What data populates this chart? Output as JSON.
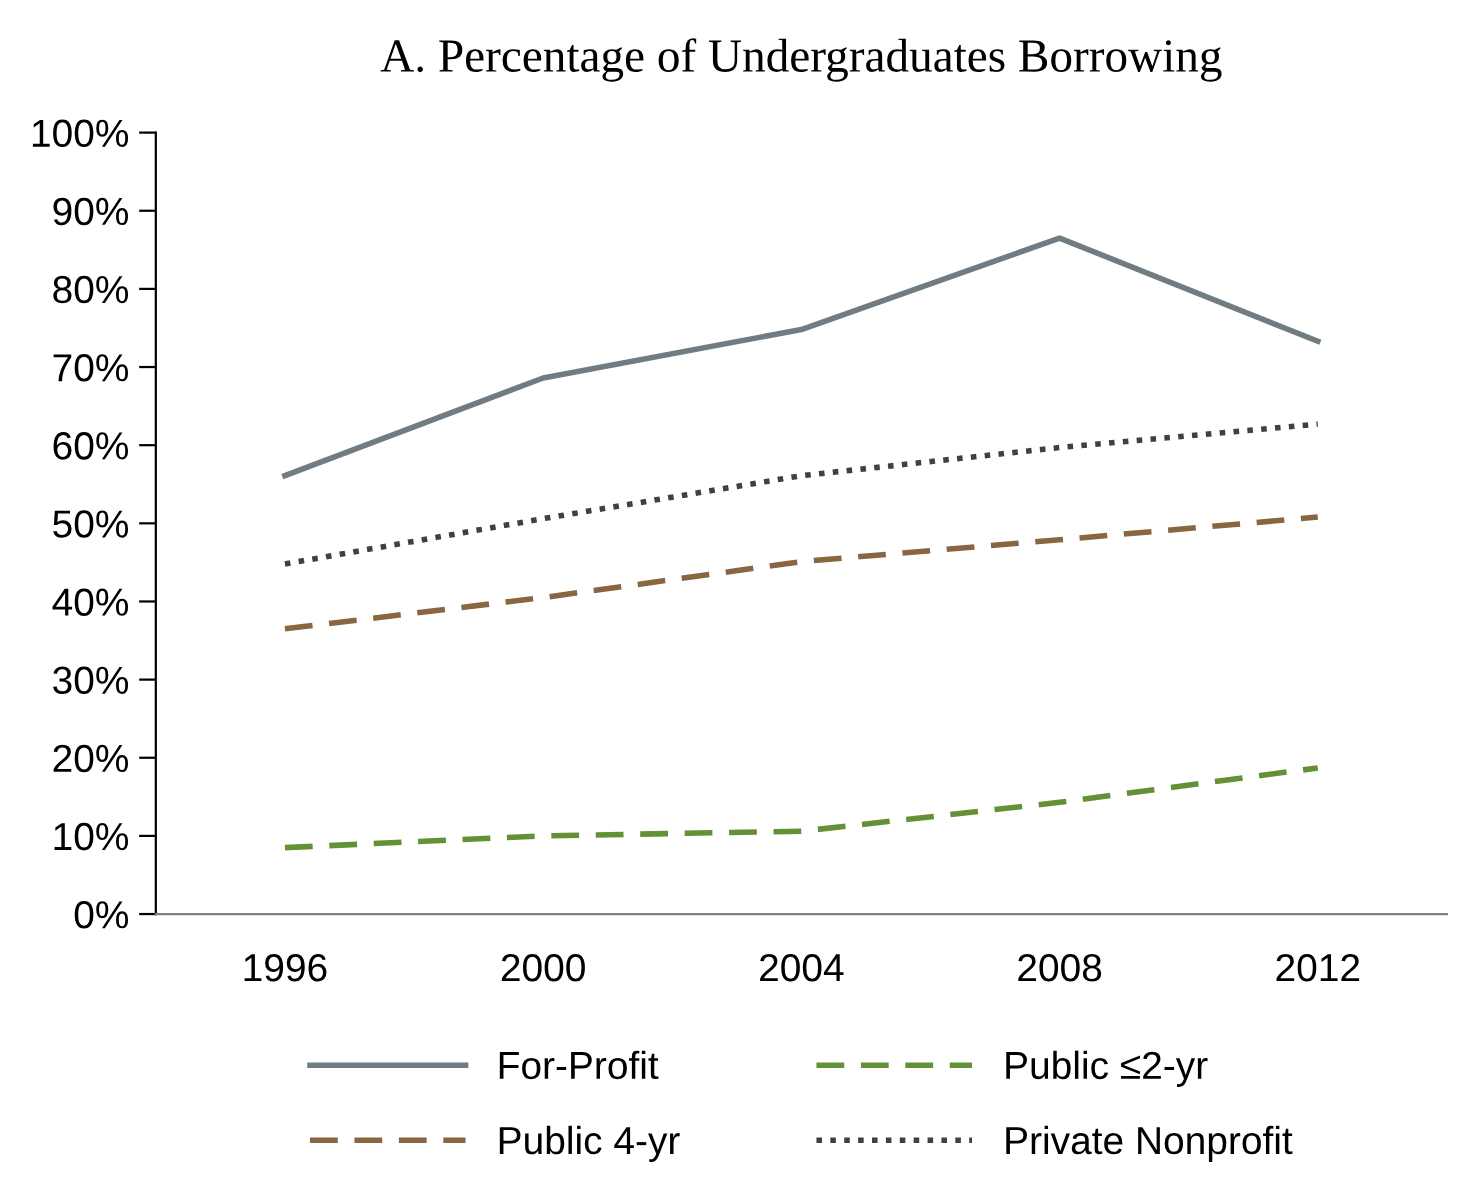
{
  "chart_data": {
    "type": "line",
    "title": "A. Percentage of Undergraduates Borrowing",
    "categories": [
      "1996",
      "2000",
      "2004",
      "2008",
      "2012"
    ],
    "ylim": [
      0,
      100
    ],
    "yticks": [
      {
        "value": 0,
        "label": "0%"
      },
      {
        "value": 10,
        "label": "10%"
      },
      {
        "value": 20,
        "label": "20%"
      },
      {
        "value": 30,
        "label": "30%"
      },
      {
        "value": 40,
        "label": "40%"
      },
      {
        "value": 50,
        "label": "50%"
      },
      {
        "value": 60,
        "label": "60%"
      },
      {
        "value": 70,
        "label": "70%"
      },
      {
        "value": 80,
        "label": "80%"
      },
      {
        "value": 90,
        "label": "90%"
      },
      {
        "value": 100,
        "label": "100%"
      }
    ],
    "grid": false,
    "legend": "bottom",
    "marker": "none",
    "series": [
      {
        "name": "For-Profit",
        "color": "#707b82",
        "line_style": "solid",
        "values": [
          56.1,
          68.6,
          74.8,
          86.5,
          73.3
        ]
      },
      {
        "name": "Public ≤2-yr",
        "color": "#639136",
        "line_style": "dashed",
        "values": [
          8.5,
          10.0,
          10.6,
          14.3,
          18.7
        ]
      },
      {
        "name": "Public 4-yr",
        "color": "#8a6542",
        "line_style": "dashed",
        "values": [
          36.5,
          40.5,
          45.1,
          47.9,
          50.8
        ]
      },
      {
        "name": "Private Nonprofit",
        "color": "#404040",
        "line_style": "dotted",
        "values": [
          44.8,
          50.6,
          56.1,
          59.7,
          62.7
        ]
      }
    ]
  }
}
